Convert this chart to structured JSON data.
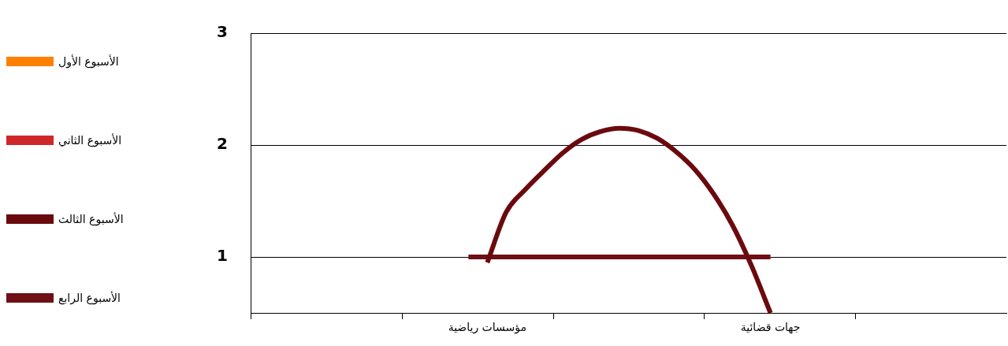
{
  "chart_data": {
    "type": "line",
    "categories": [
      null,
      null,
      null,
      null,
      null,
      null,
      null,
      null,
      null,
      null,
      null,
      null,
      "مؤسسات رياضية",
      null,
      null,
      null,
      null,
      null,
      null,
      null,
      null,
      null,
      null,
      null,
      null,
      null,
      null,
      "جهات قضائية",
      null,
      null,
      null,
      null,
      null,
      null,
      null,
      null,
      null,
      null,
      null,
      null
    ],
    "ylim": [
      0.5,
      3
    ],
    "yticks": [
      1,
      2,
      3
    ],
    "grid": "y",
    "legend": "left",
    "marker": "none",
    "line_style": "solid",
    "series": [
      {
        "name": "الأسبوع الأول",
        "color": "#ff8000",
        "values": [
          null,
          null,
          null,
          null,
          null,
          null,
          null,
          null,
          null,
          null,
          null,
          null,
          null,
          null,
          null,
          null,
          null,
          null,
          null,
          null,
          null,
          null,
          null,
          null,
          null,
          null,
          null,
          null,
          null,
          null,
          null,
          null,
          null,
          null,
          null,
          null,
          null,
          null,
          null,
          null
        ]
      },
      {
        "name": "الأسبوع الثاني",
        "color": "#d0282a",
        "values": [
          null,
          null,
          null,
          null,
          null,
          null,
          null,
          null,
          null,
          null,
          null,
          null,
          null,
          null,
          null,
          null,
          null,
          null,
          null,
          null,
          null,
          null,
          null,
          null,
          null,
          null,
          null,
          null,
          null,
          null,
          null,
          null,
          null,
          null,
          null,
          null,
          null,
          null,
          null,
          null
        ]
      },
      {
        "name": "الأسبوع الثالث",
        "color": "#6b0a0e",
        "values": [
          null,
          null,
          null,
          null,
          null,
          null,
          null,
          null,
          null,
          null,
          null,
          null,
          0.95,
          1.4,
          1.6,
          1.77,
          1.93,
          2.05,
          2.12,
          2.15,
          2.13,
          2.06,
          1.94,
          1.78,
          1.56,
          1.28,
          0.92,
          0.5,
          null,
          null,
          null,
          null,
          null,
          null,
          null,
          null,
          null,
          null,
          null,
          null
        ]
      },
      {
        "name": "الأسبوع الرابع",
        "color": "#6e1015",
        "values": [
          null,
          null,
          null,
          null,
          null,
          null,
          null,
          null,
          null,
          null,
          null,
          1,
          1,
          1,
          1,
          1,
          1,
          1,
          1,
          1,
          1,
          1,
          1,
          1,
          1,
          1,
          1,
          1,
          null,
          null,
          null,
          null,
          null,
          null,
          null,
          null,
          null,
          null,
          null,
          null
        ]
      }
    ]
  }
}
